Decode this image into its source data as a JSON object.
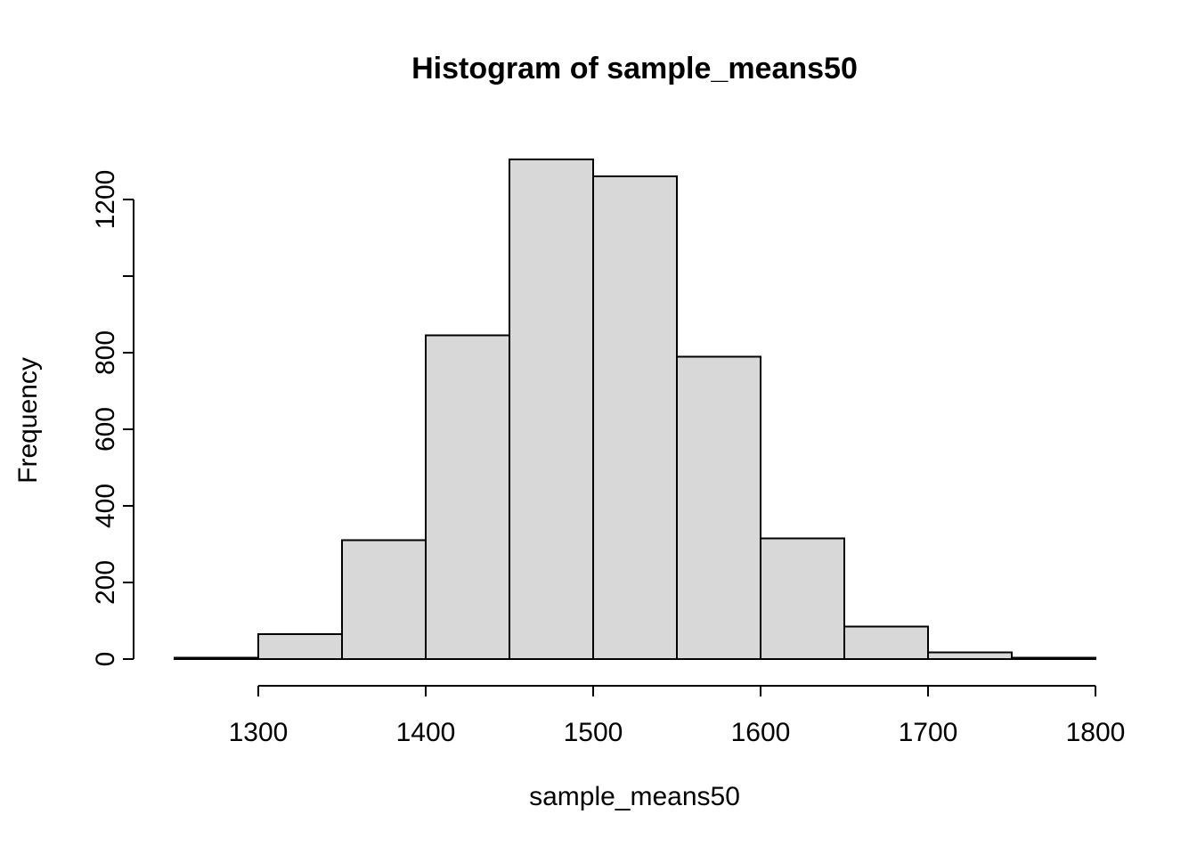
{
  "title": "Histogram of sample_means50",
  "chart_data": {
    "type": "bar",
    "subtype": "histogram",
    "title": "Histogram of sample_means50",
    "xlabel": "sample_means50",
    "ylabel": "Frequency",
    "bin_breaks": [
      1250,
      1300,
      1350,
      1400,
      1450,
      1500,
      1550,
      1600,
      1650,
      1700,
      1750,
      1800
    ],
    "values": [
      3,
      65,
      310,
      845,
      1305,
      1260,
      790,
      315,
      85,
      18,
      3
    ],
    "x_ticks": [
      1300,
      1400,
      1500,
      1600,
      1700,
      1800
    ],
    "x_tick_labels": [
      "1300",
      "1400",
      "1500",
      "1600",
      "1700",
      "1800"
    ],
    "y_ticks": [
      0,
      200,
      400,
      600,
      800,
      1000,
      1200
    ],
    "y_tick_labels": [
      "0",
      "200",
      "400",
      "600",
      "800",
      "",
      "1200"
    ],
    "xlim": [
      1250,
      1800
    ],
    "ylim": [
      0,
      1200
    ],
    "grid": false,
    "legend": false,
    "bar_fill": "#d8d8d8",
    "bar_stroke": "#000000",
    "axis_color": "#000000",
    "background": "#ffffff"
  }
}
